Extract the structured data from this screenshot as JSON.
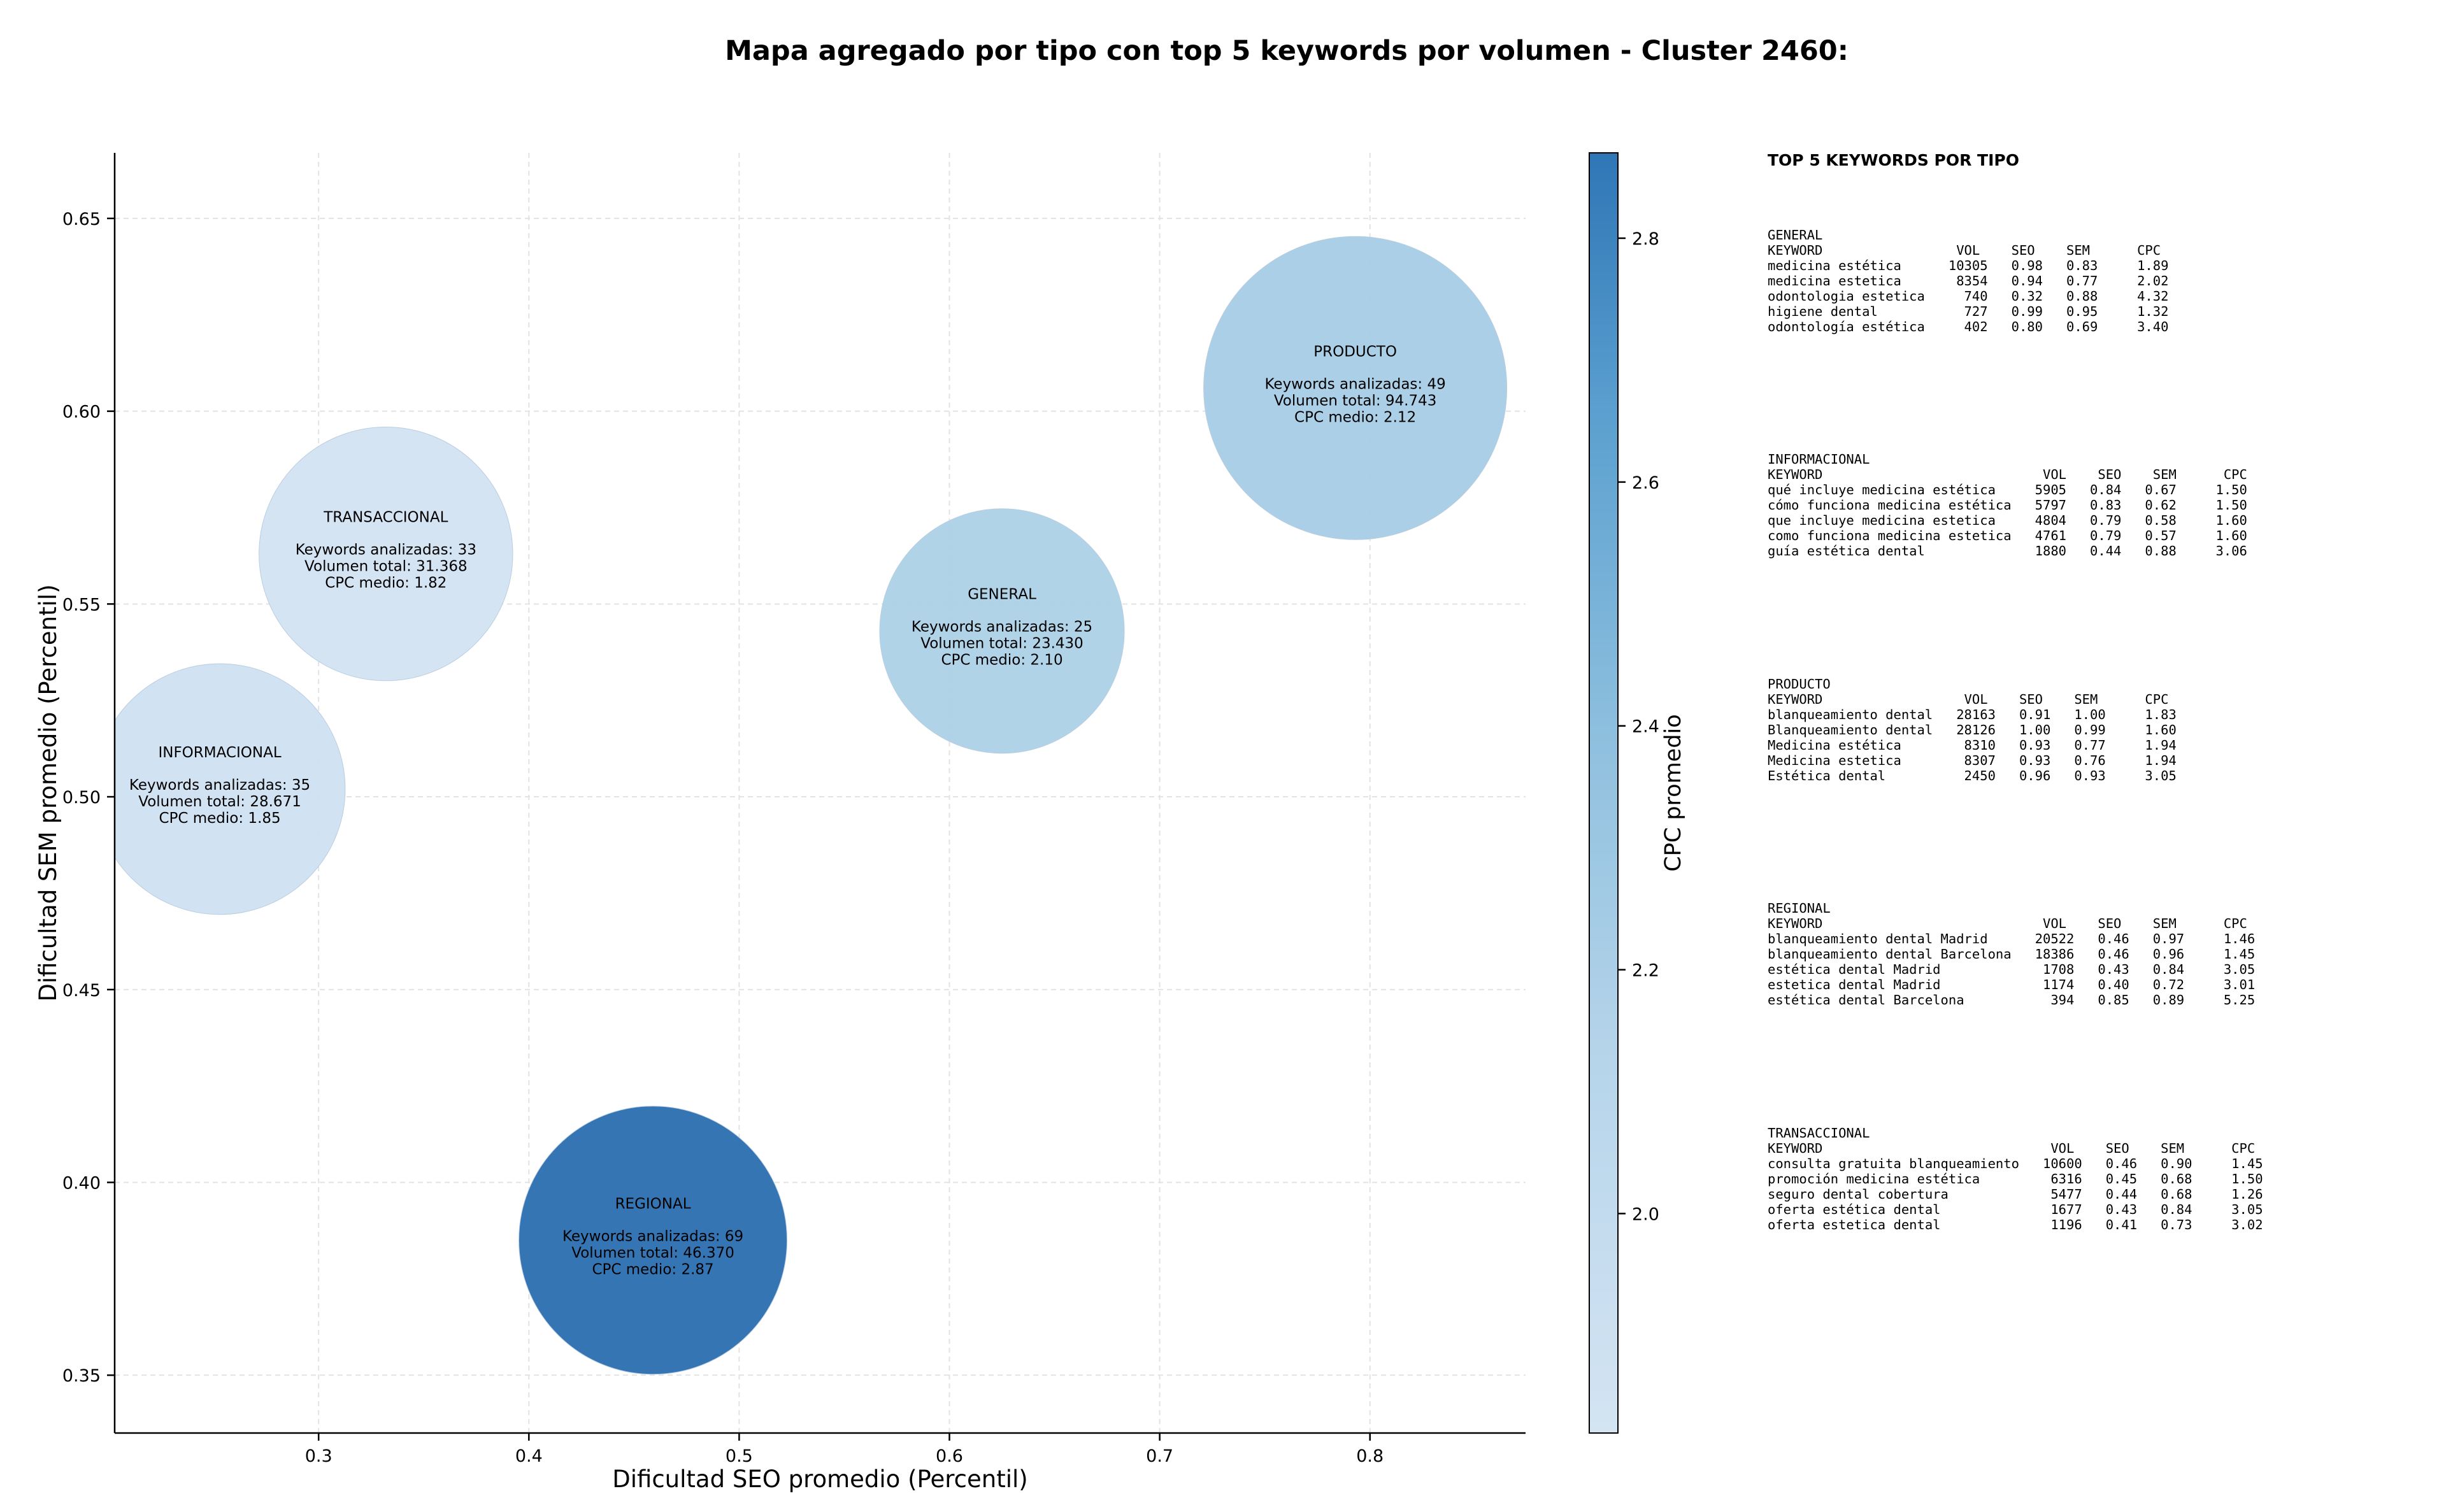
{
  "chart_data": {
    "type": "scatter",
    "title": "Mapa agregado por tipo con top 5 keywords por volumen - Cluster 2460:",
    "xlabel": "Dificultad SEO promedio (Percentil)",
    "ylabel": "Dificultad SEM promedio (Percentil)",
    "xlim": [
      0.203,
      0.874
    ],
    "ylim": [
      0.335,
      0.667
    ],
    "xticks": [
      0.3,
      0.4,
      0.5,
      0.6,
      0.7,
      0.8
    ],
    "yticks": [
      0.35,
      0.4,
      0.45,
      0.5,
      0.55,
      0.6,
      0.65
    ],
    "xtick_labels": [
      "0.3",
      "0.4",
      "0.5",
      "0.6",
      "0.7",
      "0.8"
    ],
    "ytick_labels": [
      "0.35",
      "0.40",
      "0.45",
      "0.50",
      "0.55",
      "0.60",
      "0.65"
    ],
    "grid": true,
    "colorbar": {
      "label": "CPC promedio",
      "range": [
        1.82,
        2.87
      ],
      "ticks": [
        2.0,
        2.2,
        2.4,
        2.6,
        2.8
      ],
      "tick_labels": [
        "2.0",
        "2.2",
        "2.4",
        "2.6",
        "2.8"
      ],
      "color_low": "#d0e1f2",
      "color_high": "#2e7ebc"
    },
    "points": [
      {
        "type": "INFORMACIONAL",
        "x": 0.253,
        "y": 0.502,
        "keywords_line": "Keywords analizadas: 35",
        "volume_line": "Volumen total: 28.671",
        "cpc_line": "CPC medio: 1.85",
        "count": 35,
        "volume": 28671,
        "cpc": 1.85,
        "color": "#cfe1f2"
      },
      {
        "type": "TRANSACCIONAL",
        "x": 0.332,
        "y": 0.563,
        "keywords_line": "Keywords analizadas: 33",
        "volume_line": "Volumen total: 31.368",
        "cpc_line": "CPC medio: 1.82",
        "count": 33,
        "volume": 31368,
        "cpc": 1.82,
        "color": "#d2e3f3"
      },
      {
        "type": "REGIONAL",
        "x": 0.459,
        "y": 0.385,
        "keywords_line": "Keywords analizadas: 69",
        "volume_line": "Volumen total: 46.370",
        "cpc_line": "CPC medio: 2.87",
        "count": 69,
        "volume": 46370,
        "cpc": 2.87,
        "color": "#2e6fb0"
      },
      {
        "type": "GENERAL",
        "x": 0.625,
        "y": 0.543,
        "keywords_line": "Keywords analizadas: 25",
        "volume_line": "Volumen total: 23.430",
        "cpc_line": "CPC medio: 2.10",
        "count": 25,
        "volume": 23430,
        "cpc": 2.1,
        "color": "#aed1e7"
      },
      {
        "type": "PRODUCTO",
        "x": 0.793,
        "y": 0.606,
        "keywords_line": "Keywords analizadas: 49",
        "volume_line": "Volumen total: 94.743",
        "cpc_line": "CPC medio: 2.12",
        "count": 49,
        "volume": 94743,
        "cpc": 2.12,
        "color": "#a8cde5"
      }
    ]
  },
  "side_panel": {
    "heading": "TOP 5 KEYWORDS POR TIPO",
    "blocks": [
      {
        "title": "GENERAL",
        "header": "KEYWORD                 VOL    SEO    SEM      CPC",
        "rows": [
          "medicina estética      10305   0.98   0.83     1.89",
          "medicina estetica       8354   0.94   0.77     2.02",
          "odontologia estetica     740   0.32   0.88     4.32",
          "higiene dental           727   0.99   0.95     1.32",
          "odontología estética     402   0.80   0.69     3.40"
        ]
      },
      {
        "title": "INFORMACIONAL",
        "header": "KEYWORD                            VOL    SEO    SEM      CPC",
        "rows": [
          "qué incluye medicina estética     5905   0.84   0.67     1.50",
          "cómo funciona medicina estética   5797   0.83   0.62     1.50",
          "que incluye medicina estetica     4804   0.79   0.58     1.60",
          "como funciona medicina estetica   4761   0.79   0.57     1.60",
          "guía estética dental              1880   0.44   0.88     3.06"
        ]
      },
      {
        "title": "PRODUCTO",
        "header": "KEYWORD                  VOL    SEO    SEM      CPC",
        "rows": [
          "blanqueamiento dental   28163   0.91   1.00     1.83",
          "Blanqueamiento dental   28126   1.00   0.99     1.60",
          "Medicina estética        8310   0.93   0.77     1.94",
          "Medicina estetica        8307   0.93   0.76     1.94",
          "Estética dental          2450   0.96   0.93     3.05"
        ]
      },
      {
        "title": "REGIONAL",
        "header": "KEYWORD                            VOL    SEO    SEM      CPC",
        "rows": [
          "blanqueamiento dental Madrid      20522   0.46   0.97     1.46",
          "blanqueamiento dental Barcelona   18386   0.46   0.96     1.45",
          "estética dental Madrid             1708   0.43   0.84     3.05",
          "estetica dental Madrid             1174   0.40   0.72     3.01",
          "estética dental Barcelona           394   0.85   0.89     5.25"
        ]
      },
      {
        "title": "TRANSACCIONAL",
        "header": "KEYWORD                             VOL    SEO    SEM      CPC",
        "rows": [
          "consulta gratuita blanqueamiento   10600   0.46   0.90     1.45",
          "promoción medicina estética         6316   0.45   0.68     1.50",
          "seguro dental cobertura             5477   0.44   0.68     1.26",
          "oferta estética dental              1677   0.43   0.84     3.05",
          "oferta estetica dental              1196   0.41   0.73     3.02"
        ]
      }
    ]
  }
}
